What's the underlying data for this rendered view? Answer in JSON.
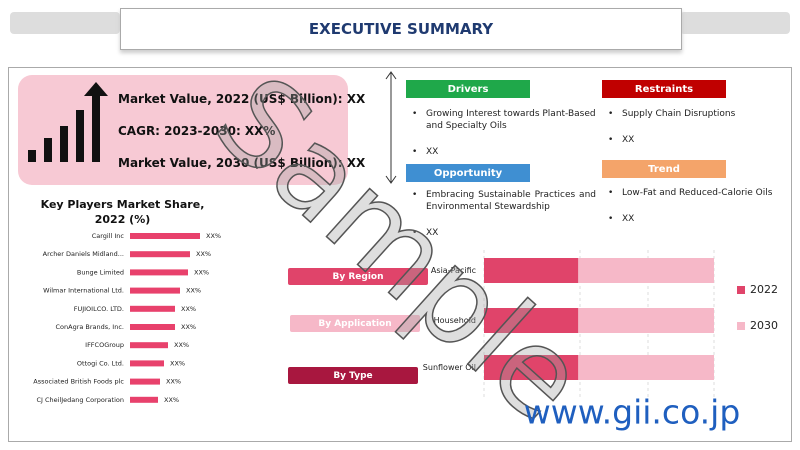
{
  "header": {
    "title": "EXECUTIVE SUMMARY"
  },
  "summary": {
    "lines": [
      "Market Value, 2022 (US$ Billion): XX",
      "CAGR: 2023-2030: XX%",
      "Market Value, 2030 (US$ Billion): XX"
    ]
  },
  "drivers": {
    "title": "Drivers",
    "items": [
      "Growing Interest towards Plant-Based and Specialty Oils",
      "XX"
    ]
  },
  "restraints": {
    "title": "Restraints",
    "items": [
      "Supply Chain Disruptions",
      "XX"
    ]
  },
  "opportunity": {
    "title": "Opportunity",
    "items": [
      "Embracing Sustainable Practices and Environmental Stewardship",
      "XX"
    ]
  },
  "trend": {
    "title": "Trend",
    "items": [
      "Low-Fat and Reduced-Calorie Oils",
      "XX"
    ]
  },
  "segments": {
    "buttons": [
      "By Region",
      "By Application",
      "By Type"
    ]
  },
  "watermark": "Sample",
  "footer": {
    "url": "www.gii.co.jp"
  },
  "chart_data": [
    {
      "type": "hbar",
      "title": "Key Players Market Share, 2022 (%)",
      "categories": [
        "Cargill Inc",
        "Archer Daniels Midland...",
        "Bunge Limited",
        "Wilmar International Ltd.",
        "FUJIOILCO. LTD.",
        "ConAgra Brands, Inc.",
        "IFFCOGroup",
        "Ottogi Co. Ltd.",
        "Associated British Foods plc",
        "CJ CheilJedang Corporation"
      ],
      "values": [
        14,
        12,
        11.6,
        10,
        9,
        9,
        7.6,
        6.8,
        6,
        5.6
      ],
      "value_labels": [
        "XX%",
        "XX%",
        "XX%",
        "XX%",
        "XX%",
        "XX%",
        "XX%",
        "XX%",
        "XX%",
        "XX%"
      ],
      "color": "#e8416c"
    },
    {
      "type": "stacked-hbar",
      "categories": [
        "Asia-Pacific",
        "Household",
        "Sunflower Oil"
      ],
      "series": [
        {
          "name": "2022",
          "color": "#e0446a",
          "values": [
            41,
            41,
            41
          ]
        },
        {
          "name": "2030",
          "color": "#f6b8c8",
          "values": [
            59,
            59,
            59
          ]
        }
      ]
    }
  ]
}
